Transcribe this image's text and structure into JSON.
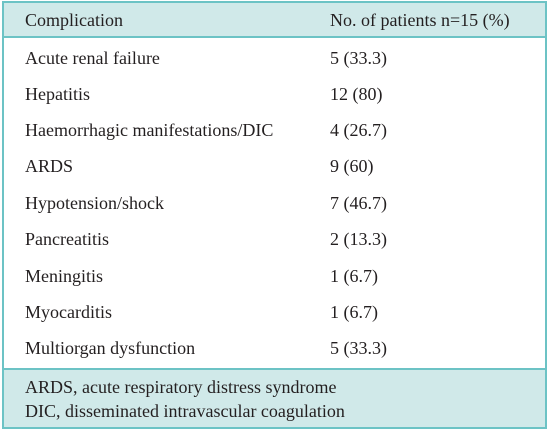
{
  "table": {
    "headers": {
      "complication": "Complication",
      "patients": "No. of patients n=15 (%)"
    },
    "rows": [
      {
        "complication": "Acute renal failure",
        "patients": "5 (33.3)"
      },
      {
        "complication": "Hepatitis",
        "patients": "12 (80)"
      },
      {
        "complication": "Haemorrhagic manifestations/DIC",
        "patients": "4 (26.7)"
      },
      {
        "complication": "ARDS",
        "patients": "9 (60)"
      },
      {
        "complication": "Hypotension/shock",
        "patients": "7 (46.7)"
      },
      {
        "complication": "Pancreatitis",
        "patients": "2 (13.3)"
      },
      {
        "complication": "Meningitis",
        "patients": "1 (6.7)"
      },
      {
        "complication": "Myocarditis",
        "patients": "1 (6.7)"
      },
      {
        "complication": "Multiorgan dysfunction",
        "patients": "5 (33.3)"
      }
    ],
    "footnotes": [
      "ARDS, acute respiratory distress syndrome",
      "DIC, disseminated intravascular coagulation"
    ]
  },
  "colors": {
    "border": "#6cc3c5",
    "header_background": "#d0e9e9",
    "text": "#231f20"
  }
}
